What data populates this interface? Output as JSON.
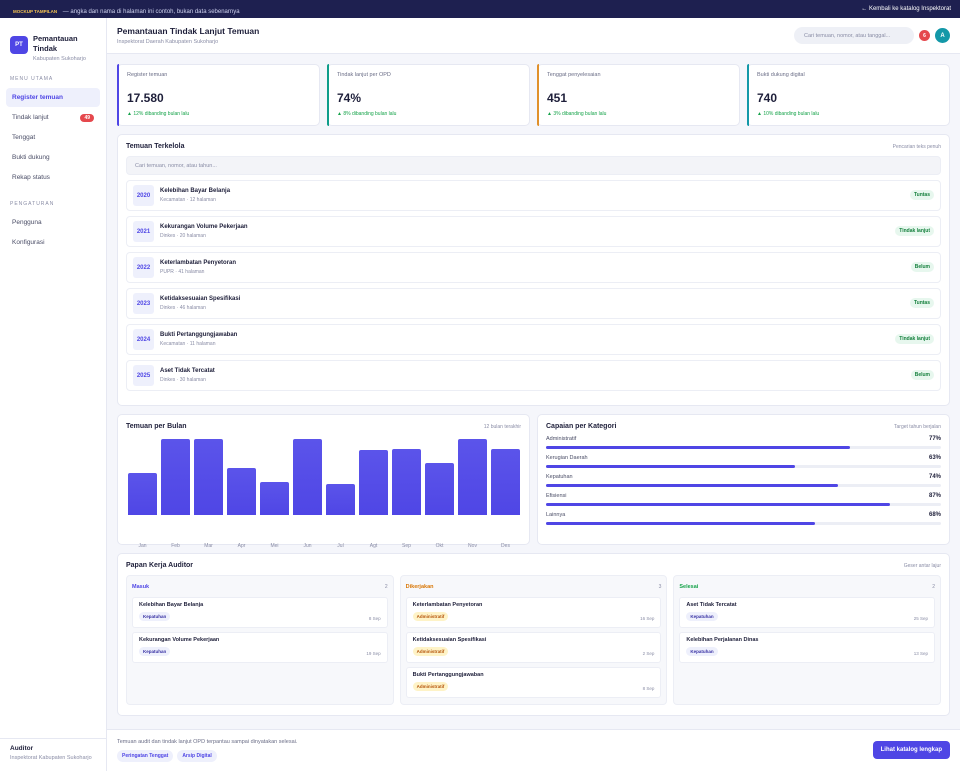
{
  "topbar": {
    "tag": "MOCKUP TAMPILAN",
    "note": " — angka dan nama di halaman ini contoh, bukan data sebenarnya",
    "back_link": "← Kembali ke katalog Inspektorat"
  },
  "brand": {
    "logo": "PT",
    "name": "Pemantauan Tindak",
    "sub": "Kabupaten Sukoharjo"
  },
  "sidebar": {
    "section_main": "MENU UTAMA",
    "main_items": [
      {
        "label": "Register temuan",
        "active": true
      },
      {
        "label": "Tindak lanjut",
        "badge": "49"
      },
      {
        "label": "Tenggat"
      },
      {
        "label": "Bukti dukung"
      },
      {
        "label": "Rekap status"
      }
    ],
    "section_settings": "PENGATURAN",
    "settings_items": [
      {
        "label": "Pengguna"
      },
      {
        "label": "Konfigurasi"
      }
    ],
    "footer": {
      "role": "Auditor",
      "org": "Inspektorat Kabupaten Sukoharjo"
    }
  },
  "header": {
    "title": "Pemantauan Tindak Lanjut Temuan",
    "subtitle": "Inspektorat Daerah Kabupaten Sukoharjo",
    "search_placeholder": "Cari temuan, nomor, atau tanggal...",
    "notif_count": "6",
    "avatar": "A"
  },
  "kpis": [
    {
      "label": "Register temuan",
      "value": "17.580",
      "delta": "▲ 12% dibanding bulan lalu",
      "color": "#4f46e5"
    },
    {
      "label": "Tindak lanjut per OPD",
      "value": "74%",
      "delta": "▲ 8% dibanding bulan lalu",
      "color": "#0f9d8a"
    },
    {
      "label": "Tenggat penyelesaian",
      "value": "451",
      "delta": "▲ 3% dibanding bulan lalu",
      "color": "#e0902a"
    },
    {
      "label": "Bukti dukung digital",
      "value": "740",
      "delta": "▲ 10% dibanding bulan lalu",
      "color": "#1398a8"
    }
  ],
  "findings": {
    "title": "Temuan Terkelola",
    "hint": "Pencarian teks penuh",
    "search_placeholder": "Cari temuan, nomor, atau tahun...",
    "items": [
      {
        "year": "2020",
        "title": "Kelebihan Bayar Belanja",
        "meta": "Kecamatan · 12 halaman",
        "status": "Tuntas"
      },
      {
        "year": "2021",
        "title": "Kekurangan Volume Pekerjaan",
        "meta": "Dinkes · 20 halaman",
        "status": "Tindak lanjut"
      },
      {
        "year": "2022",
        "title": "Keterlambatan Penyetoran",
        "meta": "PUPR · 41 halaman",
        "status": "Belum"
      },
      {
        "year": "2023",
        "title": "Ketidaksesuaian Spesifikasi",
        "meta": "Dinkes · 46 halaman",
        "status": "Tuntas"
      },
      {
        "year": "2024",
        "title": "Bukti Pertanggungjawaban",
        "meta": "Kecamatan · 11 halaman",
        "status": "Tindak lanjut"
      },
      {
        "year": "2025",
        "title": "Aset Tidak Tercatat",
        "meta": "Dinkes · 30 halaman",
        "status": "Belum"
      }
    ]
  },
  "chart_data": {
    "type": "bar",
    "title": "Temuan per Bulan",
    "subtitle": "12 bulan terakhir",
    "categories": [
      "Jan",
      "Feb",
      "Mar",
      "Apr",
      "Mei",
      "Jun",
      "Jul",
      "Agt",
      "Sep",
      "Okt",
      "Nov",
      "Des"
    ],
    "values": [
      55,
      100,
      100,
      62,
      43,
      100,
      41,
      85,
      87,
      68,
      100,
      87
    ],
    "ylim": [
      0,
      100
    ],
    "grid": false
  },
  "categories_card": {
    "title": "Capaian per Kategori",
    "hint": "Target tahun berjalan",
    "items": [
      {
        "name": "Administratif",
        "pct_label": "77%",
        "value": 77
      },
      {
        "name": "Kerugian Daerah",
        "pct_label": "63%",
        "value": 63
      },
      {
        "name": "Kepatuhan",
        "pct_label": "74%",
        "value": 74
      },
      {
        "name": "Efisiensi",
        "pct_label": "87%",
        "value": 87
      },
      {
        "name": "Lainnya",
        "pct_label": "68%",
        "value": 68
      }
    ]
  },
  "board": {
    "title": "Papan Kerja Auditor",
    "hint": "Geser antar lajur",
    "lanes": [
      {
        "name": "Masuk",
        "count": "2",
        "color": "#4f46e5",
        "tasks": [
          {
            "title": "Kelebihan Bayar Belanja",
            "tag": "Kepatuhan",
            "date": "8 Sep"
          },
          {
            "title": "Kekurangan Volume Pekerjaan",
            "tag": "Kepatuhan",
            "date": "19 Sep"
          }
        ]
      },
      {
        "name": "Dikerjakan",
        "count": "3",
        "color": "#d97706",
        "tasks": [
          {
            "title": "Keterlambatan Penyetoran",
            "tag": "Administratif",
            "date": "16 Sep"
          },
          {
            "title": "Ketidaksesuaian Spesifikasi",
            "tag": "Administratif",
            "date": "2 Sep"
          },
          {
            "title": "Bukti Pertanggungjawaban",
            "tag": "Administratif",
            "date": "8 Sep"
          }
        ]
      },
      {
        "name": "Selesai",
        "count": "2",
        "color": "#16a34a",
        "tasks": [
          {
            "title": "Aset Tidak Tercatat",
            "tag": "Kepatuhan",
            "date": "25 Sep"
          },
          {
            "title": "Kelebihan Perjalanan Dinas",
            "tag": "Kepatuhan",
            "date": "13 Sep"
          }
        ]
      }
    ]
  },
  "footer": {
    "note": "Temuan audit dan tindak lanjut OPD terpantau sampai dinyatakan selesai.",
    "links": [
      "Peringatan Tenggat",
      "Arsip Digital"
    ],
    "button": "Lihat katalog lengkap"
  }
}
